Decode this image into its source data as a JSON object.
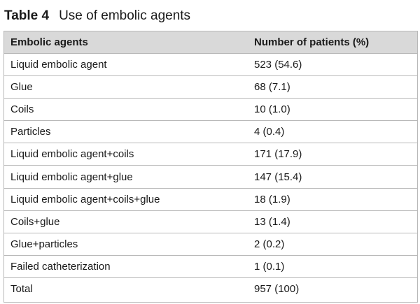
{
  "table": {
    "number": "Table 4",
    "title": "Use of embolic agents",
    "headers": [
      "Embolic agents",
      "Number of patients (%)"
    ],
    "rows": [
      [
        "Liquid embolic agent",
        "523 (54.6)"
      ],
      [
        "Glue",
        "68 (7.1)"
      ],
      [
        "Coils",
        "10 (1.0)"
      ],
      [
        "Particles",
        "4 (0.4)"
      ],
      [
        "Liquid embolic agent+coils",
        "171 (17.9)"
      ],
      [
        "Liquid embolic agent+glue",
        "147 (15.4)"
      ],
      [
        "Liquid embolic agent+coils+glue",
        "18 (1.9)"
      ],
      [
        "Coils+glue",
        "13 (1.4)"
      ],
      [
        "Glue+particles",
        "2 (0.2)"
      ],
      [
        "Failed catheterization",
        "1 (0.1)"
      ],
      [
        "Total",
        "957 (100)"
      ]
    ]
  }
}
